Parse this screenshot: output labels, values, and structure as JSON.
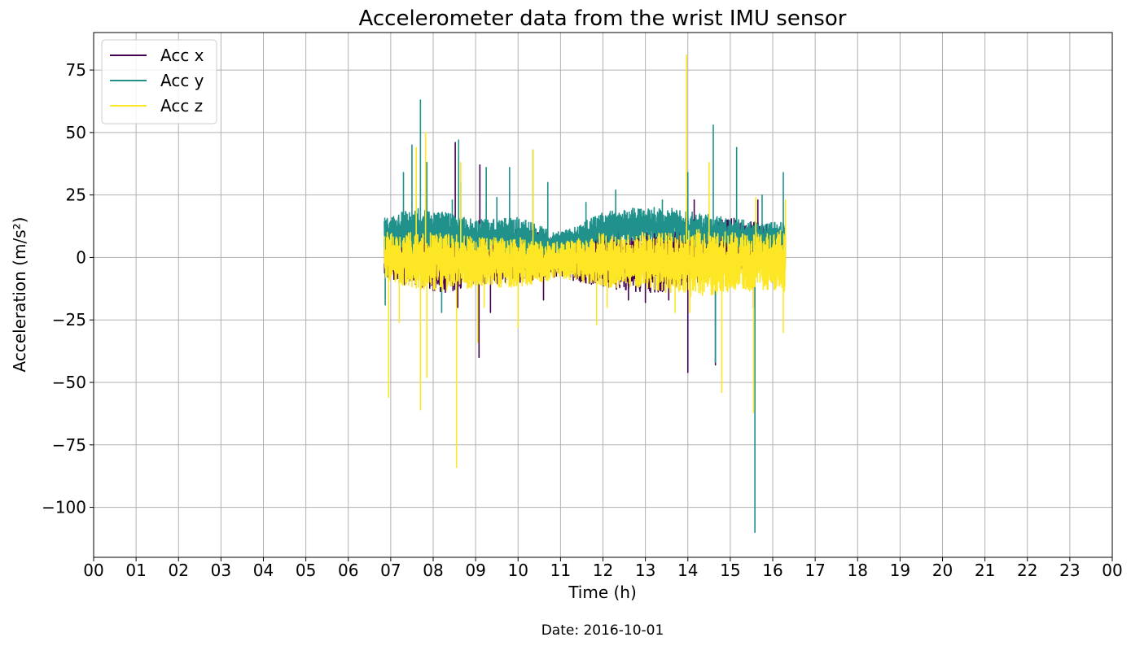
{
  "chart_data": {
    "type": "line",
    "title": "Accelerometer data from the wrist IMU sensor",
    "xlabel": "Time (h)",
    "ylabel": "Acceleration (m/s²)",
    "x_unit": "hours",
    "xlim": [
      0,
      24
    ],
    "ylim": [
      -120,
      90
    ],
    "x_ticks": [
      "00",
      "01",
      "02",
      "03",
      "04",
      "05",
      "06",
      "07",
      "08",
      "09",
      "10",
      "11",
      "12",
      "13",
      "14",
      "15",
      "16",
      "17",
      "18",
      "19",
      "20",
      "21",
      "22",
      "23",
      "00"
    ],
    "y_ticks": [
      {
        "value": 75,
        "label": "75"
      },
      {
        "value": 50,
        "label": "50"
      },
      {
        "value": 25,
        "label": "25"
      },
      {
        "value": 0,
        "label": "0"
      },
      {
        "value": -25,
        "label": "−25"
      },
      {
        "value": -50,
        "label": "−50"
      },
      {
        "value": -75,
        "label": "−75"
      },
      {
        "value": -100,
        "label": "−100"
      }
    ],
    "grid": true,
    "legend_position": "top-left",
    "data_range_hours": [
      6.85,
      16.3
    ],
    "series": [
      {
        "name": "Acc x",
        "color": "#440154",
        "band": [
          [
            6.85,
            -8,
            10
          ],
          [
            7.5,
            -12,
            12
          ],
          [
            8.3,
            -14,
            12
          ],
          [
            9.0,
            -12,
            10
          ],
          [
            10.0,
            -10,
            12
          ],
          [
            11.0,
            -8,
            8
          ],
          [
            12.0,
            -12,
            12
          ],
          [
            12.8,
            -14,
            12
          ],
          [
            13.5,
            -14,
            14
          ],
          [
            14.2,
            -10,
            16
          ],
          [
            15.0,
            -8,
            16
          ],
          [
            15.7,
            -6,
            14
          ],
          [
            16.3,
            -8,
            12
          ]
        ],
        "spikes": [
          [
            8.52,
            46
          ],
          [
            8.58,
            -20
          ],
          [
            9.08,
            -40
          ],
          [
            9.1,
            37
          ],
          [
            9.35,
            -22
          ],
          [
            10.6,
            -17
          ],
          [
            11.45,
            -8
          ],
          [
            12.6,
            -17
          ],
          [
            13.0,
            -18
          ],
          [
            13.55,
            -17
          ],
          [
            14.0,
            -46
          ],
          [
            14.15,
            23
          ],
          [
            14.65,
            -43
          ],
          [
            15.55,
            -20
          ],
          [
            15.65,
            23
          ]
        ]
      },
      {
        "name": "Acc y",
        "color": "#21918c",
        "band": [
          [
            6.85,
            2,
            16
          ],
          [
            7.5,
            2,
            20
          ],
          [
            8.3,
            4,
            18
          ],
          [
            9.0,
            2,
            15
          ],
          [
            10.0,
            0,
            16
          ],
          [
            11.0,
            0,
            10
          ],
          [
            12.0,
            4,
            18
          ],
          [
            12.8,
            6,
            20
          ],
          [
            13.5,
            6,
            20
          ],
          [
            14.2,
            4,
            18
          ],
          [
            15.0,
            4,
            16
          ],
          [
            15.7,
            2,
            14
          ],
          [
            16.3,
            2,
            14
          ]
        ],
        "spikes": [
          [
            6.87,
            -19
          ],
          [
            7.3,
            34
          ],
          [
            7.5,
            45
          ],
          [
            7.7,
            63
          ],
          [
            7.85,
            38
          ],
          [
            8.2,
            -22
          ],
          [
            8.45,
            23
          ],
          [
            8.6,
            47
          ],
          [
            8.65,
            30
          ],
          [
            9.25,
            36
          ],
          [
            9.5,
            24
          ],
          [
            9.8,
            36
          ],
          [
            10.35,
            43
          ],
          [
            10.7,
            30
          ],
          [
            11.6,
            22
          ],
          [
            12.3,
            27
          ],
          [
            13.4,
            23
          ],
          [
            14.0,
            34
          ],
          [
            14.6,
            53
          ],
          [
            14.65,
            -42
          ],
          [
            15.15,
            44
          ],
          [
            15.58,
            -110
          ],
          [
            15.75,
            25
          ],
          [
            16.25,
            34
          ]
        ]
      },
      {
        "name": "Acc z",
        "color": "#fde725",
        "band": [
          [
            6.85,
            -10,
            10
          ],
          [
            7.5,
            -12,
            10
          ],
          [
            8.3,
            -14,
            10
          ],
          [
            9.0,
            -12,
            8
          ],
          [
            10.0,
            -12,
            8
          ],
          [
            11.0,
            -8,
            6
          ],
          [
            12.0,
            -12,
            10
          ],
          [
            12.8,
            -12,
            10
          ],
          [
            13.5,
            -14,
            10
          ],
          [
            14.2,
            -16,
            12
          ],
          [
            15.0,
            -14,
            10
          ],
          [
            15.7,
            -14,
            10
          ],
          [
            16.3,
            -14,
            12
          ]
        ],
        "spikes": [
          [
            6.95,
            -56
          ],
          [
            7.2,
            -26
          ],
          [
            7.6,
            44
          ],
          [
            7.7,
            -61
          ],
          [
            7.82,
            50
          ],
          [
            7.85,
            -48
          ],
          [
            8.55,
            -84
          ],
          [
            8.65,
            38
          ],
          [
            9.05,
            -34
          ],
          [
            9.2,
            -20
          ],
          [
            10.0,
            -28
          ],
          [
            10.35,
            43
          ],
          [
            11.85,
            -27
          ],
          [
            12.1,
            -20
          ],
          [
            13.7,
            -22
          ],
          [
            13.97,
            81
          ],
          [
            14.05,
            -22
          ],
          [
            14.5,
            38
          ],
          [
            14.8,
            -54
          ],
          [
            15.55,
            -62
          ],
          [
            15.6,
            24
          ],
          [
            16.25,
            -30
          ],
          [
            16.3,
            23
          ]
        ]
      }
    ]
  },
  "footer": {
    "date_text": "Date: 2016-10-01"
  }
}
